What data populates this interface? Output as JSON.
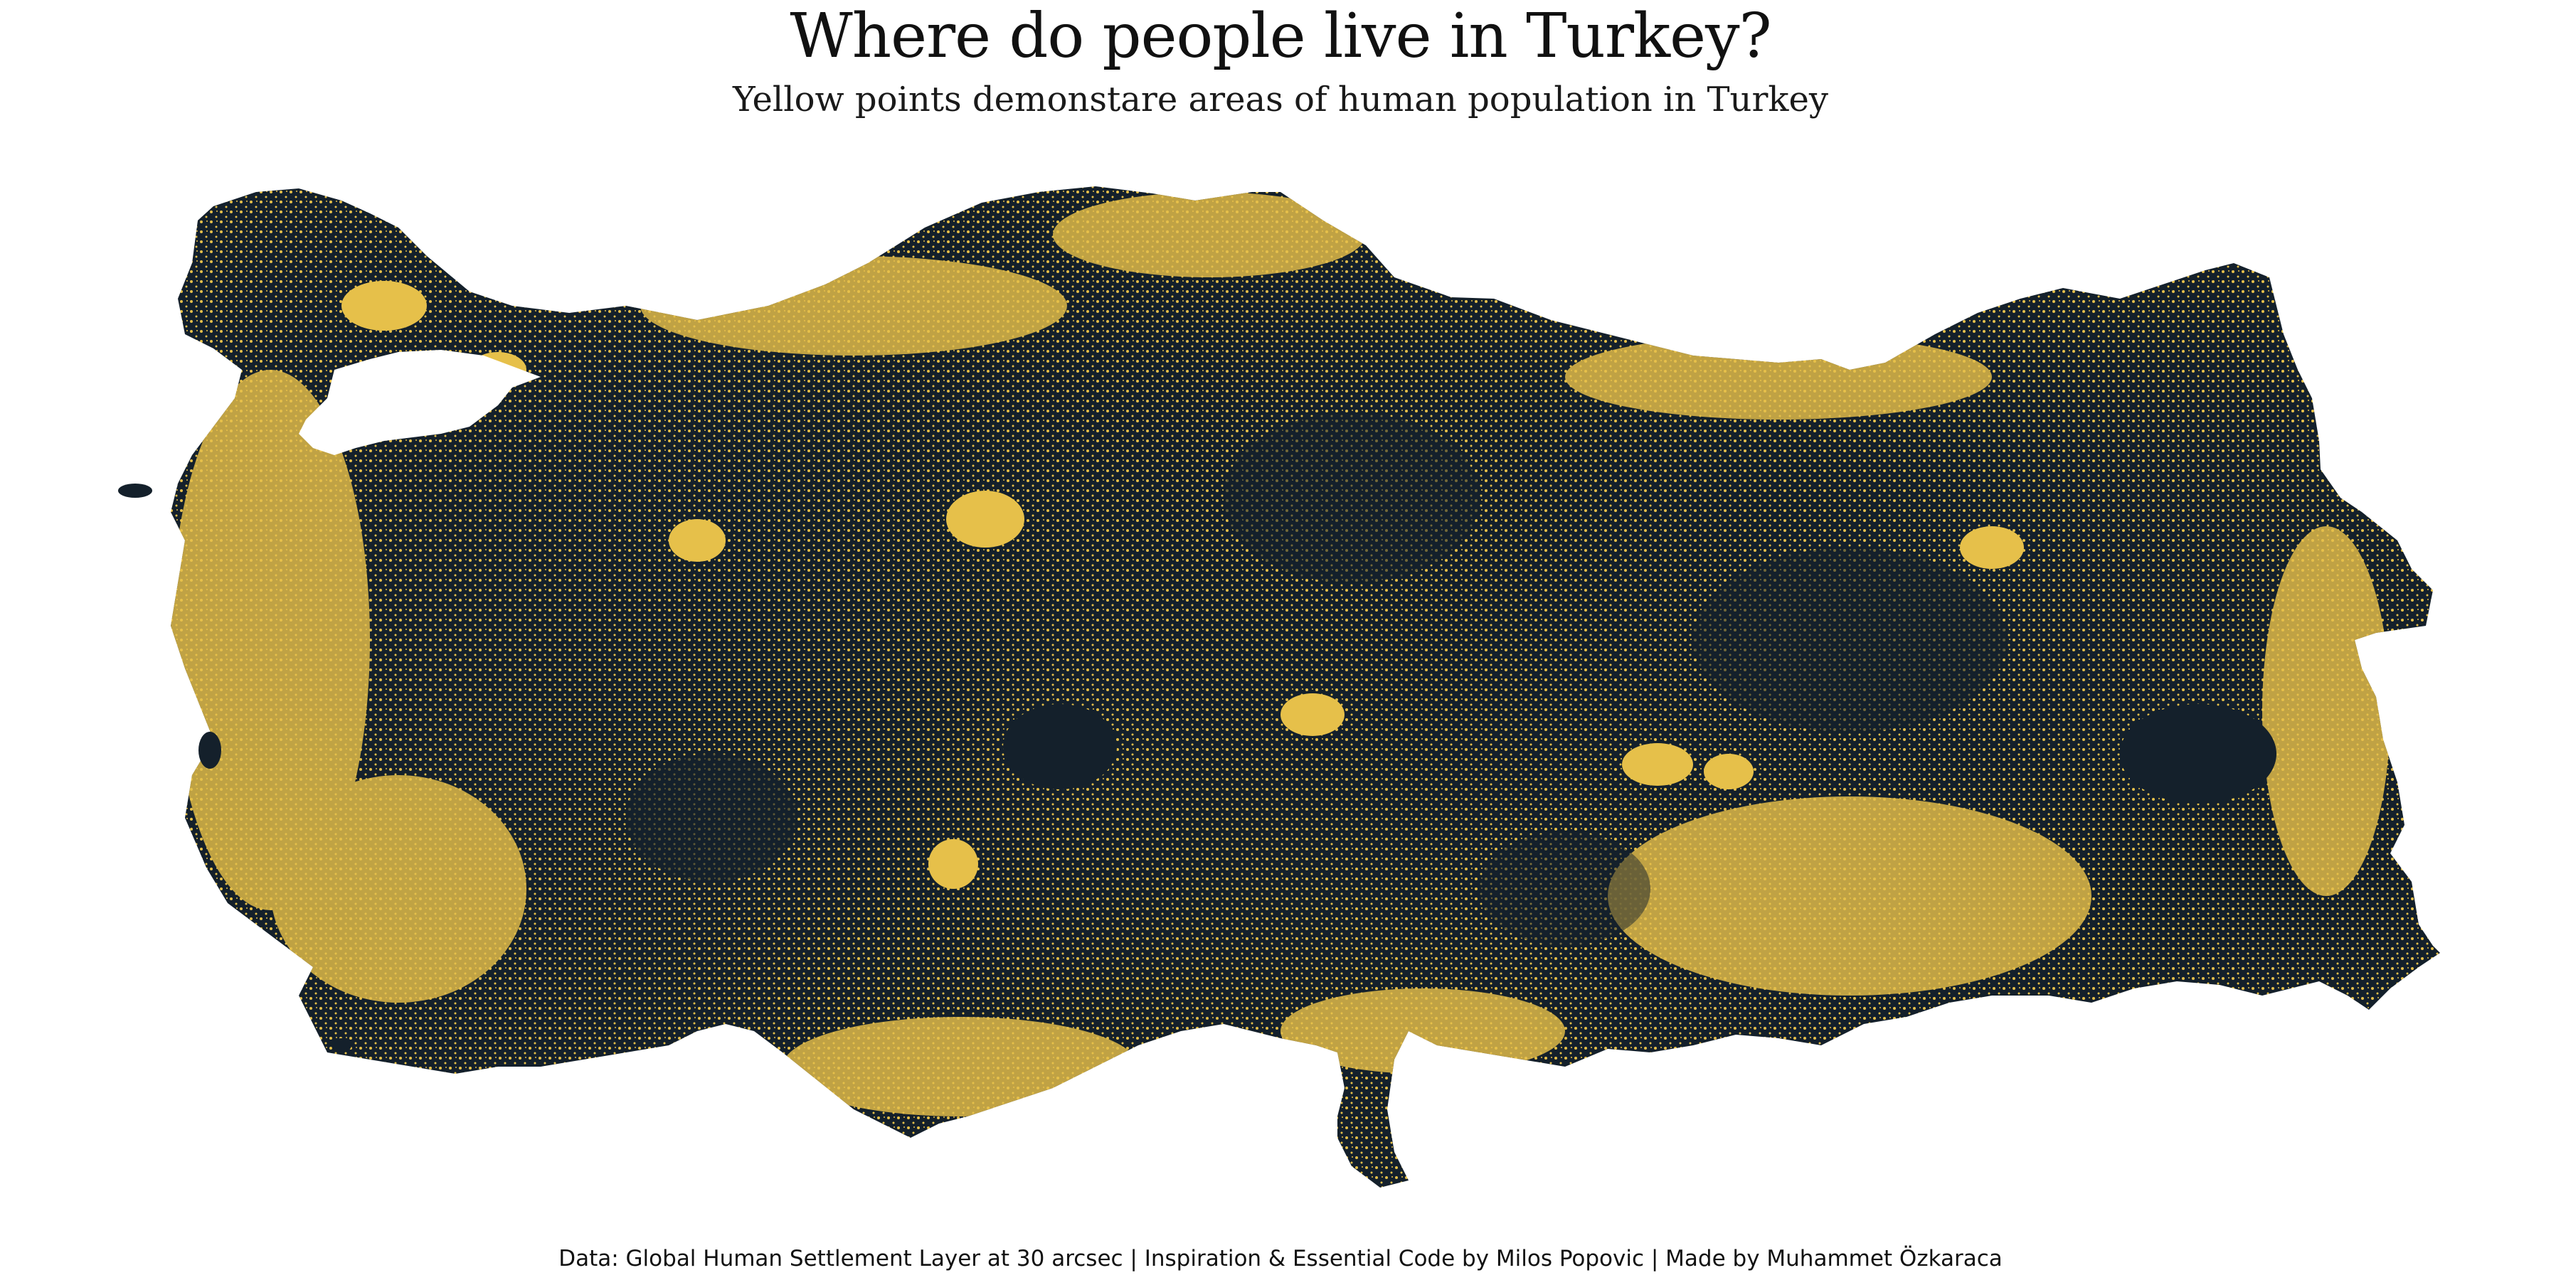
{
  "map": {
    "title": "Where do people live in Turkey?",
    "subtitle": "Yellow points demonstare areas of human population in Turkey",
    "caption": "Data: Global Human Settlement Layer at 30 arcsec |  Inspiration  & Essential Code by Milos Popovic |  Made by Muhammet Özkaraca",
    "colors": {
      "land": "#14202b",
      "population": "#e6c04a",
      "background": "#ffffff",
      "water": "#ffffff"
    }
  }
}
